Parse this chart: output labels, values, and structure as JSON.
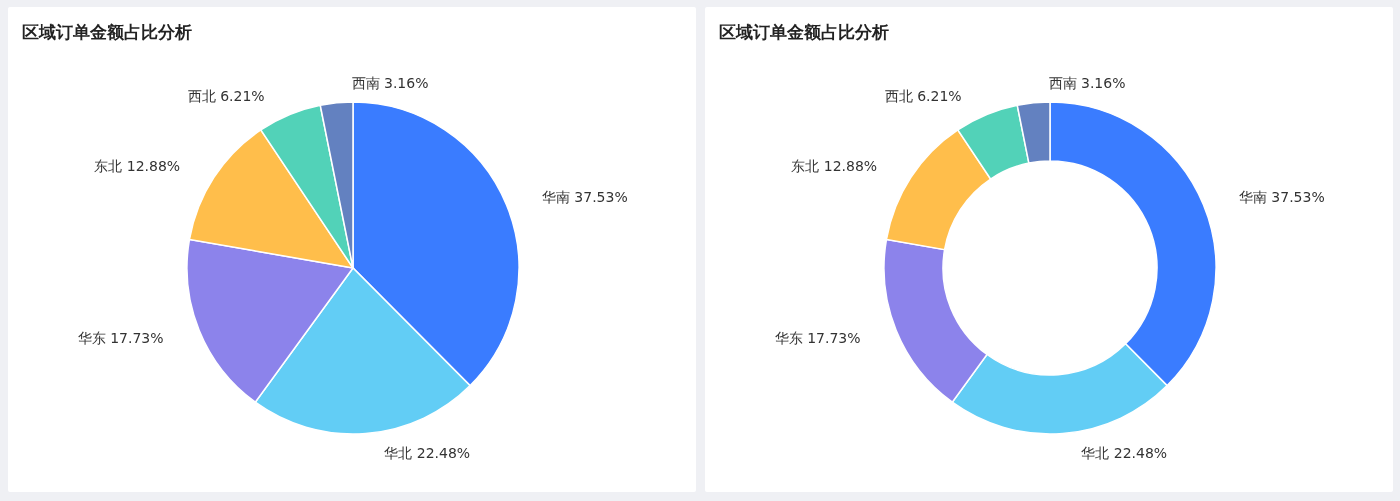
{
  "chart_data": [
    {
      "type": "pie",
      "title": "区域订单金额占比分析",
      "categories": [
        "华南",
        "华北",
        "华东",
        "东北",
        "西北",
        "西南"
      ],
      "values": [
        37.53,
        22.48,
        17.73,
        12.88,
        6.21,
        3.16
      ],
      "colors": [
        "#3a7cff",
        "#62cdf5",
        "#8c83eb",
        "#ffbe4b",
        "#52d2b8",
        "#6381c0"
      ],
      "value_labels": [
        "37.53%",
        "22.48%",
        "17.73%",
        "12.88%",
        "6.21%",
        "3.16%"
      ]
    },
    {
      "type": "donut",
      "title": "区域订单金额占比分析",
      "categories": [
        "华南",
        "华北",
        "华东",
        "东北",
        "西北",
        "西南"
      ],
      "values": [
        37.53,
        22.48,
        17.73,
        12.88,
        6.21,
        3.16
      ],
      "colors": [
        "#3a7cff",
        "#62cdf5",
        "#8c83eb",
        "#ffbe4b",
        "#52d2b8",
        "#6381c0"
      ],
      "value_labels": [
        "37.53%",
        "22.48%",
        "17.73%",
        "12.88%",
        "6.21%",
        "3.16%"
      ]
    }
  ]
}
